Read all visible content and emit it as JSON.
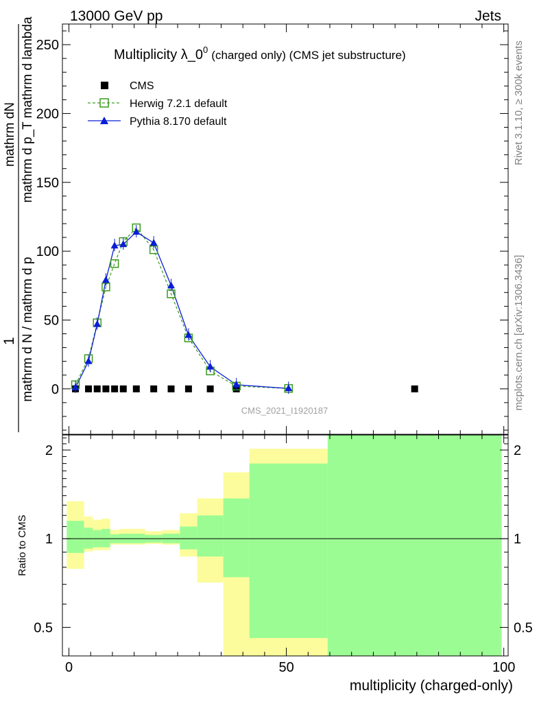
{
  "header": {
    "left": "13000 GeV pp",
    "right": "Jets"
  },
  "side_labels": {
    "rivet": "Rivet 3.1.10, ≥ 300k events",
    "mcplots": "mcplots.cern.ch [arXiv:1306.3436]"
  },
  "watermark": "CMS_2021_I1920187",
  "colors": {
    "cms": "#000000",
    "herwig": "#3a9a1a",
    "pythia": "#0a1ed6",
    "band_inner": "#9cfc94",
    "band_outer": "#fcfc9c"
  },
  "chart_data": [
    {
      "type": "scatter",
      "panel": "main",
      "title": "Multiplicity λ_0",
      "title_sup": "0",
      "title_suffix": "(charged only) (CMS jet substructure)",
      "ylabel_numer": "mathrm dN",
      "ylabel_denom": "mathrm d N / mathrm d p",
      "ylabel_prefix": "1",
      "ylabel_full_numer": "mathrm d p_T mathrm d lambda",
      "xlim": [
        -1.5,
        101
      ],
      "ylim": [
        -33,
        265
      ],
      "yticks": [
        0,
        50,
        100,
        150,
        200,
        250
      ],
      "ytick_labels": [
        "0",
        "50",
        "100",
        "150",
        "200",
        "250"
      ],
      "legend": [
        "CMS",
        "Herwig 7.2.1 default",
        "Pythia 8.170 default"
      ],
      "series": [
        {
          "name": "CMS",
          "marker": "square",
          "x": [
            1.5,
            4.5,
            6.5,
            8.5,
            10.5,
            12.5,
            15.5,
            19.5,
            23.5,
            27.5,
            32.5,
            38.5,
            79.5
          ],
          "y": [
            0,
            0,
            0,
            0,
            0,
            0,
            0,
            0,
            0,
            0,
            0,
            0,
            0
          ]
        },
        {
          "name": "Herwig 7.2.1 default",
          "marker": "open-square",
          "x": [
            1.5,
            4.5,
            6.5,
            8.5,
            10.5,
            12.5,
            15.5,
            19.5,
            23.5,
            27.5,
            32.5,
            38.5,
            50.5
          ],
          "y": [
            3,
            22,
            48,
            74,
            91,
            107,
            117,
            101,
            69,
            37,
            13,
            2,
            0.3
          ]
        },
        {
          "name": "Pythia 8.170 default",
          "marker": "triangle",
          "x": [
            1.5,
            4.5,
            6.5,
            8.5,
            10.5,
            12.5,
            15.5,
            19.5,
            23.5,
            27.5,
            32.5,
            38.5,
            50.5
          ],
          "y": [
            1,
            20,
            47,
            79,
            104,
            105,
            114,
            106,
            75,
            39,
            16,
            3,
            0.3
          ]
        }
      ]
    },
    {
      "type": "area",
      "panel": "ratio",
      "ylabel": "Ratio to CMS",
      "xlabel": "multiplicity (charged-only)",
      "xlim": [
        -1.5,
        101
      ],
      "ylim": [
        0.4,
        2.25
      ],
      "yticks": [
        0.5,
        1,
        2
      ],
      "ytick_labels": [
        "0.5",
        "1",
        "2"
      ],
      "xticks": [
        0,
        50,
        100
      ],
      "xtick_labels": [
        "0",
        "50",
        "100"
      ],
      "reference": 1,
      "bins": [
        {
          "lo": -0.5,
          "hi": 3.5,
          "inner": [
            0.895,
            1.15
          ],
          "outer": [
            0.79,
            1.34
          ]
        },
        {
          "lo": 3.5,
          "hi": 5.5,
          "inner": [
            0.925,
            1.09
          ],
          "outer": [
            0.905,
            1.19
          ]
        },
        {
          "lo": 5.5,
          "hi": 7.5,
          "inner": [
            0.935,
            1.07
          ],
          "outer": [
            0.915,
            1.16
          ]
        },
        {
          "lo": 7.5,
          "hi": 9.5,
          "inner": [
            0.935,
            1.08
          ],
          "outer": [
            0.915,
            1.17
          ]
        },
        {
          "lo": 9.5,
          "hi": 11.5,
          "inner": [
            0.965,
            1.035
          ],
          "outer": [
            0.955,
            1.07
          ]
        },
        {
          "lo": 11.5,
          "hi": 13.5,
          "inner": [
            0.965,
            1.04
          ],
          "outer": [
            0.955,
            1.08
          ]
        },
        {
          "lo": 13.5,
          "hi": 17.5,
          "inner": [
            0.965,
            1.04
          ],
          "outer": [
            0.955,
            1.08
          ]
        },
        {
          "lo": 17.5,
          "hi": 21.5,
          "inner": [
            0.97,
            1.03
          ],
          "outer": [
            0.96,
            1.06
          ]
        },
        {
          "lo": 21.5,
          "hi": 25.5,
          "inner": [
            0.965,
            1.04
          ],
          "outer": [
            0.955,
            1.07
          ]
        },
        {
          "lo": 25.5,
          "hi": 29.5,
          "inner": [
            0.92,
            1.1
          ],
          "outer": [
            0.87,
            1.22
          ]
        },
        {
          "lo": 29.5,
          "hi": 35.5,
          "inner": [
            0.87,
            1.2
          ],
          "outer": [
            0.71,
            1.37
          ]
        },
        {
          "lo": 35.5,
          "hi": 41.5,
          "inner": [
            0.74,
            1.37
          ],
          "outer": [
            0.3,
            1.68
          ]
        },
        {
          "lo": 41.5,
          "hi": 59.5,
          "inner": [
            0.46,
            1.8
          ],
          "outer": [
            0.3,
            2.02
          ]
        },
        {
          "lo": 59.5,
          "hi": 99.5,
          "inner": [
            0.3,
            2.5
          ],
          "outer": [
            0.3,
            2.5
          ]
        }
      ]
    }
  ]
}
